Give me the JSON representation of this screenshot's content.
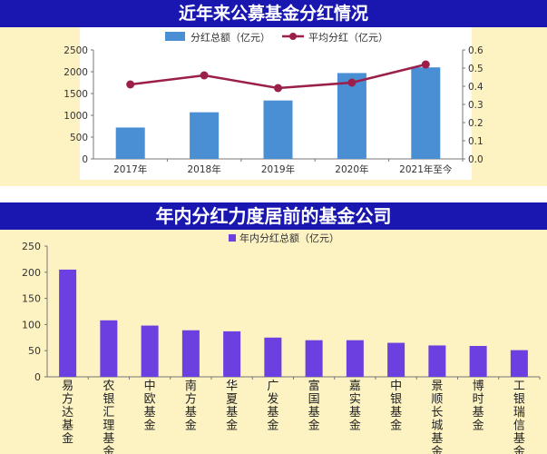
{
  "chart_data": [
    {
      "type": "bar",
      "title": "近年来公募基金分红情况",
      "categories": [
        "2017年",
        "2018年",
        "2019年",
        "2020年",
        "2021年至今"
      ],
      "series": [
        {
          "name": "分红总额（亿元）",
          "type": "bar",
          "axis": "left",
          "values": [
            720,
            1070,
            1340,
            1970,
            2100
          ],
          "color": "#4a8ed4"
        },
        {
          "name": "平均分红（亿元）",
          "type": "line",
          "axis": "right",
          "values": [
            0.41,
            0.46,
            0.39,
            0.42,
            0.52
          ],
          "color": "#9b1f4a"
        }
      ],
      "y_left": {
        "min": 0,
        "max": 2500,
        "ticks": [
          "0",
          "500",
          "1000",
          "1500",
          "2000",
          "2500"
        ]
      },
      "y_right": {
        "min": 0,
        "max": 0.6,
        "ticks": [
          "0.0",
          "0.1",
          "0.2",
          "0.3",
          "0.4",
          "0.5",
          "0.6"
        ]
      },
      "legend": "top"
    },
    {
      "type": "bar",
      "title": "年内分红力度居前的基金公司",
      "categories": [
        "易方达基金",
        "农银汇理基金",
        "中欧基金",
        "南方基金",
        "华夏基金",
        "广发基金",
        "富国基金",
        "嘉实基金",
        "中银基金",
        "景顺长城基金",
        "博时基金",
        "工银瑞信基金"
      ],
      "series": [
        {
          "name": "年内分红总额（亿元）",
          "values": [
            205,
            108,
            98,
            89,
            87,
            75,
            70,
            70,
            65,
            60,
            59,
            51
          ],
          "color": "#6b3fe0"
        }
      ],
      "y": {
        "min": 0,
        "max": 250,
        "ticks": [
          "0",
          "50",
          "100",
          "150",
          "200",
          "250"
        ]
      },
      "legend": "top"
    }
  ]
}
